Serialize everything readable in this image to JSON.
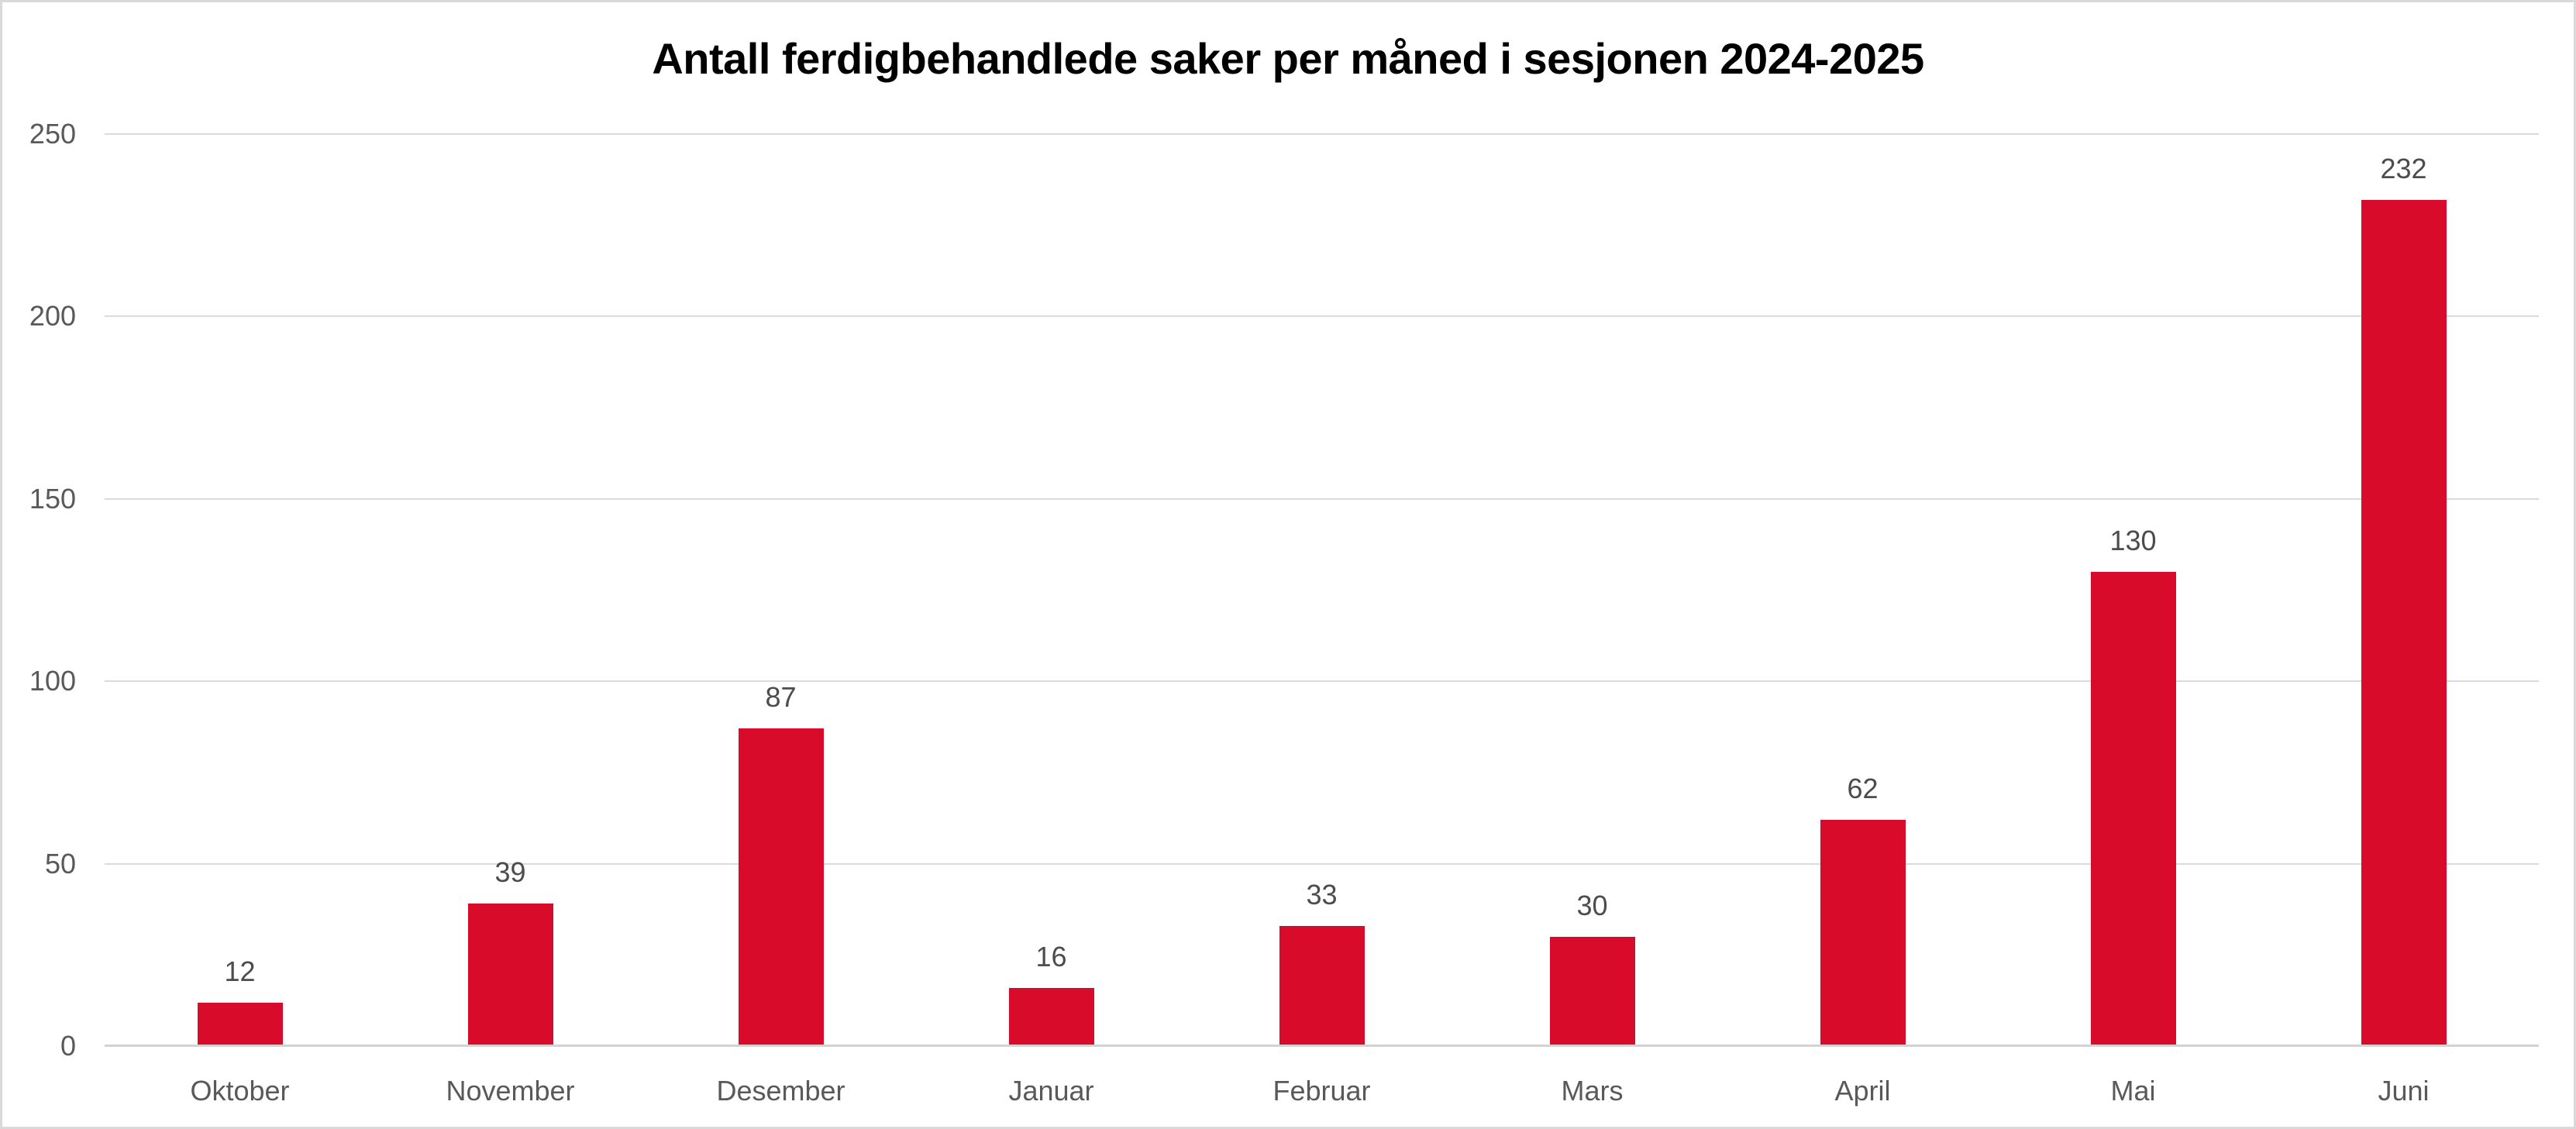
{
  "frame": {
    "background": "#FFFFFF",
    "border_color": "#D9D9D9"
  },
  "chart_data": {
    "type": "bar",
    "title": "Antall ferdigbehandlede saker per måned i sesjonen 2024-2025",
    "categories": [
      "Oktober",
      "November",
      "Desember",
      "Januar",
      "Februar",
      "Mars",
      "April",
      "Mai",
      "Juni"
    ],
    "values": [
      12,
      39,
      87,
      16,
      33,
      30,
      62,
      130,
      232
    ],
    "xlabel": "",
    "ylabel": "",
    "ylim": [
      0,
      250
    ],
    "yticks": [
      0,
      50,
      100,
      150,
      200,
      250
    ],
    "grid": true,
    "legend_position": "none",
    "data_labels": true,
    "bar_color": "#D90B2B",
    "gridline_color": "#DBDBDB",
    "axis_line_color": "#D3D3D3",
    "tick_label_color": "#595959",
    "data_label_color": "#4c4c4c",
    "title_color": "#000000"
  }
}
